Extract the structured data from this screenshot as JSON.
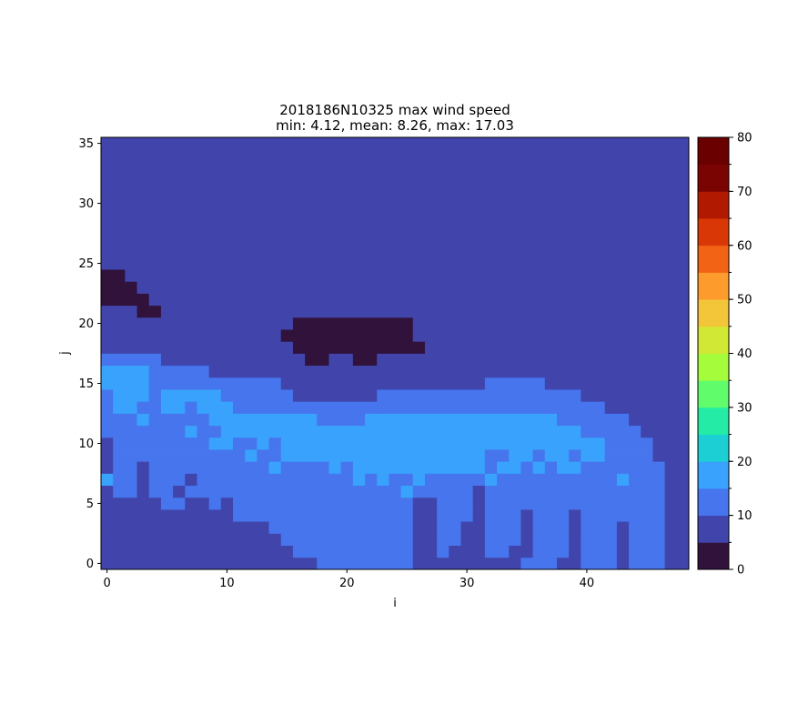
{
  "chart_data": {
    "type": "heatmap",
    "title": "2018186N10325 max wind speed",
    "subtitle": "min: 4.12, mean: 8.26, max: 17.03",
    "xlabel": "i",
    "ylabel": "j",
    "xlim": [
      -0.5,
      48.5
    ],
    "ylim": [
      -0.5,
      35.5
    ],
    "x_ticks": [
      0,
      10,
      20,
      30,
      40
    ],
    "y_ticks": [
      0,
      5,
      10,
      15,
      20,
      25,
      30,
      35
    ],
    "grid": false,
    "colorbar": {
      "ticks": [
        0,
        10,
        20,
        30,
        40,
        50,
        60,
        70,
        80
      ],
      "bounds": [
        0,
        5,
        10,
        15,
        20,
        25,
        30,
        35,
        40,
        45,
        50,
        55,
        60,
        65,
        70,
        75,
        80
      ],
      "colors": [
        "#30123b",
        "#4145ab",
        "#4675ed",
        "#39a2fc",
        "#1bcfd4",
        "#24eca6",
        "#61fc6c",
        "#a4fc3b",
        "#d1e834",
        "#f3c63a",
        "#fe9b2d",
        "#f36315",
        "#d93806",
        "#b11901",
        "#7a0402",
        "#6a0000"
      ]
    },
    "rows_note": "Each entry gives one row j (from 0 upward) as runs [start_i, end_i, class]; class 0 = 0-5, 1 = 5-10, 2 = 10-15, 3 = 15-20.",
    "rows": [
      [
        [
          0,
          15,
          1
        ],
        [
          16,
          17,
          1
        ],
        [
          18,
          25,
          2
        ],
        [
          26,
          27,
          1
        ],
        [
          28,
          28,
          1
        ],
        [
          29,
          31,
          1
        ],
        [
          32,
          32,
          1
        ],
        [
          33,
          34,
          1
        ],
        [
          35,
          37,
          2
        ],
        [
          38,
          39,
          1
        ],
        [
          40,
          42,
          2
        ],
        [
          43,
          43,
          1
        ],
        [
          44,
          46,
          2
        ],
        [
          47,
          48,
          1
        ]
      ],
      [
        [
          0,
          15,
          1
        ],
        [
          16,
          25,
          2
        ],
        [
          26,
          27,
          1
        ],
        [
          28,
          28,
          2
        ],
        [
          29,
          30,
          1
        ],
        [
          31,
          31,
          1
        ],
        [
          32,
          33,
          2
        ],
        [
          34,
          35,
          1
        ],
        [
          36,
          38,
          2
        ],
        [
          39,
          39,
          1
        ],
        [
          40,
          42,
          2
        ],
        [
          43,
          43,
          1
        ],
        [
          44,
          46,
          2
        ],
        [
          47,
          48,
          1
        ]
      ],
      [
        [
          0,
          14,
          1
        ],
        [
          15,
          25,
          2
        ],
        [
          26,
          27,
          1
        ],
        [
          28,
          29,
          2
        ],
        [
          30,
          31,
          1
        ],
        [
          32,
          34,
          2
        ],
        [
          35,
          35,
          1
        ],
        [
          36,
          38,
          2
        ],
        [
          39,
          39,
          1
        ],
        [
          40,
          42,
          2
        ],
        [
          43,
          43,
          1
        ],
        [
          44,
          46,
          2
        ],
        [
          47,
          48,
          1
        ]
      ],
      [
        [
          0,
          13,
          1
        ],
        [
          14,
          25,
          2
        ],
        [
          26,
          27,
          1
        ],
        [
          28,
          29,
          2
        ],
        [
          30,
          30,
          1
        ],
        [
          31,
          31,
          1
        ],
        [
          32,
          34,
          2
        ],
        [
          35,
          35,
          1
        ],
        [
          36,
          38,
          2
        ],
        [
          39,
          39,
          1
        ],
        [
          40,
          42,
          2
        ],
        [
          43,
          43,
          1
        ],
        [
          44,
          46,
          2
        ],
        [
          47,
          48,
          1
        ]
      ],
      [
        [
          0,
          10,
          1
        ],
        [
          11,
          25,
          2
        ],
        [
          26,
          27,
          1
        ],
        [
          28,
          30,
          2
        ],
        [
          31,
          31,
          1
        ],
        [
          32,
          34,
          2
        ],
        [
          35,
          35,
          1
        ],
        [
          36,
          38,
          2
        ],
        [
          39,
          39,
          1
        ],
        [
          40,
          46,
          2
        ],
        [
          47,
          48,
          1
        ]
      ],
      [
        [
          0,
          4,
          1
        ],
        [
          5,
          6,
          2
        ],
        [
          7,
          8,
          1
        ],
        [
          9,
          9,
          2
        ],
        [
          10,
          10,
          1
        ],
        [
          11,
          25,
          2
        ],
        [
          26,
          27,
          1
        ],
        [
          28,
          30,
          2
        ],
        [
          31,
          31,
          1
        ],
        [
          32,
          46,
          2
        ],
        [
          47,
          48,
          1
        ]
      ],
      [
        [
          0,
          0,
          1
        ],
        [
          1,
          2,
          2
        ],
        [
          3,
          3,
          1
        ],
        [
          4,
          5,
          2
        ],
        [
          6,
          6,
          1
        ],
        [
          7,
          24,
          2
        ],
        [
          25,
          25,
          3
        ],
        [
          26,
          30,
          2
        ],
        [
          31,
          31,
          1
        ],
        [
          32,
          46,
          2
        ],
        [
          47,
          48,
          1
        ]
      ],
      [
        [
          0,
          0,
          3
        ],
        [
          1,
          2,
          2
        ],
        [
          3,
          3,
          1
        ],
        [
          4,
          6,
          2
        ],
        [
          7,
          7,
          1
        ],
        [
          8,
          20,
          2
        ],
        [
          21,
          21,
          3
        ],
        [
          22,
          22,
          2
        ],
        [
          23,
          23,
          3
        ],
        [
          24,
          25,
          2
        ],
        [
          26,
          26,
          3
        ],
        [
          27,
          31,
          2
        ],
        [
          32,
          32,
          3
        ],
        [
          33,
          42,
          2
        ],
        [
          43,
          43,
          3
        ],
        [
          44,
          46,
          2
        ],
        [
          47,
          48,
          1
        ]
      ],
      [
        [
          0,
          0,
          1
        ],
        [
          1,
          2,
          2
        ],
        [
          3,
          3,
          1
        ],
        [
          4,
          13,
          2
        ],
        [
          14,
          14,
          3
        ],
        [
          15,
          18,
          2
        ],
        [
          19,
          19,
          3
        ],
        [
          20,
          20,
          2
        ],
        [
          21,
          31,
          3
        ],
        [
          32,
          32,
          2
        ],
        [
          33,
          34,
          3
        ],
        [
          35,
          35,
          2
        ],
        [
          36,
          36,
          3
        ],
        [
          37,
          37,
          2
        ],
        [
          38,
          39,
          3
        ],
        [
          40,
          42,
          2
        ],
        [
          43,
          46,
          2
        ],
        [
          47,
          48,
          1
        ]
      ],
      [
        [
          0,
          0,
          1
        ],
        [
          1,
          11,
          2
        ],
        [
          12,
          12,
          3
        ],
        [
          13,
          14,
          2
        ],
        [
          15,
          31,
          3
        ],
        [
          32,
          33,
          2
        ],
        [
          34,
          35,
          3
        ],
        [
          36,
          36,
          2
        ],
        [
          37,
          38,
          3
        ],
        [
          39,
          39,
          2
        ],
        [
          40,
          41,
          3
        ],
        [
          42,
          45,
          2
        ],
        [
          46,
          48,
          1
        ]
      ],
      [
        [
          0,
          0,
          1
        ],
        [
          1,
          8,
          2
        ],
        [
          9,
          10,
          3
        ],
        [
          11,
          12,
          2
        ],
        [
          13,
          13,
          3
        ],
        [
          14,
          14,
          2
        ],
        [
          15,
          41,
          3
        ],
        [
          42,
          45,
          2
        ],
        [
          46,
          48,
          1
        ]
      ],
      [
        [
          0,
          6,
          2
        ],
        [
          7,
          7,
          3
        ],
        [
          8,
          9,
          2
        ],
        [
          10,
          39,
          3
        ],
        [
          40,
          41,
          2
        ],
        [
          42,
          44,
          2
        ],
        [
          45,
          48,
          1
        ]
      ],
      [
        [
          0,
          2,
          2
        ],
        [
          3,
          3,
          3
        ],
        [
          4,
          8,
          2
        ],
        [
          9,
          17,
          3
        ],
        [
          18,
          21,
          2
        ],
        [
          22,
          37,
          3
        ],
        [
          38,
          40,
          2
        ],
        [
          41,
          43,
          2
        ],
        [
          44,
          48,
          1
        ]
      ],
      [
        [
          0,
          0,
          2
        ],
        [
          1,
          2,
          3
        ],
        [
          3,
          4,
          2
        ],
        [
          5,
          6,
          3
        ],
        [
          7,
          7,
          2
        ],
        [
          8,
          10,
          3
        ],
        [
          11,
          18,
          2
        ],
        [
          19,
          22,
          2
        ],
        [
          23,
          39,
          2
        ],
        [
          40,
          41,
          2
        ],
        [
          42,
          48,
          1
        ]
      ],
      [
        [
          0,
          0,
          2
        ],
        [
          1,
          3,
          3
        ],
        [
          4,
          4,
          2
        ],
        [
          5,
          7,
          3
        ],
        [
          8,
          9,
          3
        ],
        [
          10,
          13,
          2
        ],
        [
          14,
          15,
          2
        ],
        [
          16,
          22,
          1
        ],
        [
          23,
          39,
          2
        ],
        [
          40,
          48,
          1
        ]
      ],
      [
        [
          0,
          3,
          3
        ],
        [
          4,
          8,
          2
        ],
        [
          9,
          14,
          2
        ],
        [
          15,
          31,
          1
        ],
        [
          32,
          36,
          2
        ],
        [
          37,
          48,
          1
        ]
      ],
      [
        [
          0,
          3,
          3
        ],
        [
          4,
          8,
          2
        ],
        [
          9,
          48,
          1
        ]
      ],
      [
        [
          0,
          4,
          2
        ],
        [
          5,
          12,
          1
        ],
        [
          13,
          16,
          1
        ],
        [
          17,
          18,
          0
        ],
        [
          19,
          20,
          1
        ],
        [
          21,
          22,
          0
        ],
        [
          23,
          48,
          1
        ]
      ],
      [
        [
          0,
          15,
          1
        ],
        [
          16,
          26,
          0
        ],
        [
          27,
          48,
          1
        ]
      ],
      [
        [
          0,
          14,
          1
        ],
        [
          15,
          25,
          0
        ],
        [
          26,
          48,
          1
        ]
      ],
      [
        [
          0,
          15,
          1
        ],
        [
          16,
          25,
          0
        ],
        [
          26,
          48,
          1
        ]
      ],
      [
        [
          0,
          2,
          1
        ],
        [
          3,
          4,
          0
        ],
        [
          5,
          48,
          1
        ]
      ],
      [
        [
          0,
          3,
          0
        ],
        [
          4,
          48,
          1
        ]
      ],
      [
        [
          0,
          2,
          0
        ],
        [
          3,
          48,
          1
        ]
      ],
      [
        [
          0,
          1,
          0
        ],
        [
          2,
          48,
          1
        ]
      ],
      [
        [
          0,
          48,
          1
        ]
      ],
      [
        [
          0,
          48,
          1
        ]
      ],
      [
        [
          0,
          48,
          1
        ]
      ],
      [
        [
          0,
          48,
          1
        ]
      ],
      [
        [
          0,
          48,
          1
        ]
      ],
      [
        [
          0,
          48,
          1
        ]
      ],
      [
        [
          0,
          48,
          1
        ]
      ],
      [
        [
          0,
          48,
          1
        ]
      ],
      [
        [
          0,
          48,
          1
        ]
      ],
      [
        [
          0,
          48,
          1
        ]
      ],
      [
        [
          0,
          48,
          1
        ]
      ]
    ]
  }
}
